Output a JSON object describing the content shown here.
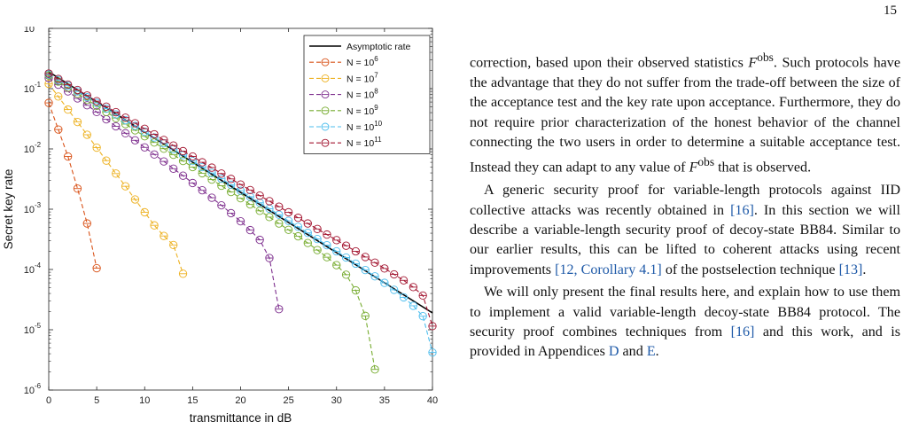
{
  "page_number": "15",
  "chart_data": {
    "type": "line",
    "xlabel": "transmittance in dB",
    "ylabel": "Secret key rate",
    "xlim": [
      0,
      40
    ],
    "ylim": [
      1e-06,
      1
    ],
    "yscale": "log",
    "xticks": [
      "0",
      "5",
      "10",
      "15",
      "20",
      "25",
      "30",
      "35",
      "40"
    ],
    "legend_position": "top-right",
    "series": [
      {
        "name": "Asymptotic rate",
        "exponent": "",
        "color": "#000000",
        "style": "solid",
        "x": [
          0,
          40
        ],
        "y": [
          0.19,
          1.9e-05
        ]
      },
      {
        "name": "N = 10",
        "exponent": "6",
        "color": "#d95319",
        "style": "dashed",
        "x": [
          0,
          1,
          2,
          3,
          4,
          5
        ],
        "y": [
          0.058,
          0.021,
          0.0075,
          0.0022,
          0.00058,
          0.000105
        ]
      },
      {
        "name": "N = 10",
        "exponent": "7",
        "color": "#edb120",
        "style": "dashed",
        "x": [
          0,
          1,
          2,
          3,
          4,
          5,
          6,
          7,
          8,
          9,
          10,
          11,
          12,
          13,
          14
        ],
        "y": [
          0.12,
          0.074,
          0.045,
          0.028,
          0.0172,
          0.0105,
          0.0064,
          0.0039,
          0.0024,
          0.00145,
          0.00089,
          0.00054,
          0.00036,
          0.000255,
          8.5e-05
        ]
      },
      {
        "name": "N = 10",
        "exponent": "8",
        "color": "#7e2f8e",
        "style": "dashed",
        "x": [
          0,
          1,
          2,
          3,
          4,
          5,
          6,
          7,
          8,
          9,
          10,
          11,
          12,
          13,
          14,
          15,
          16,
          17,
          18,
          19,
          20,
          21,
          22,
          23,
          24
        ],
        "y": [
          0.15,
          0.116,
          0.09,
          0.069,
          0.053,
          0.041,
          0.031,
          0.0237,
          0.0182,
          0.0139,
          0.0106,
          0.0081,
          0.0062,
          0.0047,
          0.0036,
          0.00272,
          0.00206,
          0.00155,
          0.00116,
          0.00086,
          0.00063,
          0.00045,
          0.00031,
          0.000155,
          2.2e-05
        ]
      },
      {
        "name": "N = 10",
        "exponent": "9",
        "color": "#77ac30",
        "style": "dashed",
        "x": [
          0,
          1,
          2,
          3,
          4,
          5,
          6,
          7,
          8,
          9,
          10,
          11,
          12,
          13,
          14,
          15,
          16,
          17,
          18,
          19,
          20,
          21,
          22,
          23,
          24,
          25,
          26,
          27,
          28,
          29,
          30,
          31,
          32,
          33,
          34
        ],
        "y": [
          0.165,
          0.131,
          0.104,
          0.082,
          0.065,
          0.052,
          0.041,
          0.0325,
          0.0258,
          0.0204,
          0.0162,
          0.0128,
          0.0101,
          0.008,
          0.0063,
          0.005,
          0.00395,
          0.0031,
          0.00245,
          0.00193,
          0.00152,
          0.0012,
          0.00094,
          0.00074,
          0.00058,
          0.000455,
          0.000355,
          0.000275,
          0.00021,
          0.00016,
          0.000118,
          8.2e-05,
          4.5e-05,
          1.7e-05,
          2.2e-06
        ]
      },
      {
        "name": "N = 10",
        "exponent": "10",
        "color": "#4dbeee",
        "style": "dashed",
        "x": [
          0,
          1,
          2,
          3,
          4,
          5,
          6,
          7,
          8,
          9,
          10,
          11,
          12,
          13,
          14,
          15,
          16,
          17,
          18,
          19,
          20,
          21,
          22,
          23,
          24,
          25,
          26,
          27,
          28,
          29,
          30,
          31,
          32,
          33,
          34,
          35,
          36,
          37,
          38,
          39,
          40
        ],
        "y": [
          0.172,
          0.139,
          0.112,
          0.09,
          0.072,
          0.058,
          0.0466,
          0.0374,
          0.03,
          0.0241,
          0.0193,
          0.0155,
          0.0124,
          0.0099,
          0.0079,
          0.0063,
          0.005,
          0.004,
          0.0032,
          0.00255,
          0.00203,
          0.00161,
          0.00128,
          0.00102,
          0.00081,
          0.00064,
          0.00051,
          0.000405,
          0.00032,
          0.000253,
          0.0002,
          0.000158,
          0.000125,
          9.8e-05,
          7.7e-05,
          6e-05,
          4.6e-05,
          3.45e-05,
          2.5e-05,
          1.68e-05,
          4.2e-06
        ]
      },
      {
        "name": "N = 10",
        "exponent": "11",
        "color": "#a2142f",
        "style": "dashed",
        "x": [
          0,
          1,
          2,
          3,
          4,
          5,
          6,
          7,
          8,
          9,
          10,
          11,
          12,
          13,
          14,
          15,
          16,
          17,
          18,
          19,
          20,
          21,
          22,
          23,
          24,
          25,
          26,
          27,
          28,
          29,
          30,
          31,
          32,
          33,
          34,
          35,
          36,
          37,
          38,
          39,
          40
        ],
        "y": [
          0.178,
          0.145,
          0.117,
          0.095,
          0.077,
          0.062,
          0.0503,
          0.0407,
          0.033,
          0.0267,
          0.0216,
          0.0175,
          0.0141,
          0.0114,
          0.0092,
          0.0075,
          0.006,
          0.0049,
          0.0039,
          0.00318,
          0.00257,
          0.00208,
          0.00168,
          0.00136,
          0.0011,
          0.00089,
          0.00072,
          0.00058,
          0.00047,
          0.00038,
          0.000307,
          0.000248,
          0.0002,
          0.000161,
          0.00013,
          0.000104,
          8.3e-05,
          6.6e-05,
          5.1e-05,
          3.7e-05,
          1.15e-05
        ]
      }
    ]
  },
  "text": {
    "p1_l1": "correction, based upon their observed statistics ",
    "p1_F": "F",
    "p1_sup": "obs",
    "p1_l1b": ".",
    "p1_rest": "Such protocols have the advantage that they do not suffer from the trade-off between the size of the acceptance test and the key rate upon acceptance. Furthermore, they do not require prior characterization of the honest behavior of the channel connecting the two users in order to determine a suitable acceptance test. Instead they can adapt to any value of ",
    "p1_F2": "F",
    "p1_sup2": "obs",
    "p1_end": " that is observed.",
    "p2_a": "A generic security proof for variable-length protocols against IID collective attacks was recently obtained in ",
    "p2_c1": "[16]",
    "p2_b": ". In this section we will describe a variable-length security proof of decoy-state BB84. Similar to our earlier results, this can be lifted to coherent attacks using recent improvements ",
    "p2_c2": "[12, Corollary 4.1]",
    "p2_c": " of the postselection technique ",
    "p2_c3": "[13]",
    "p2_d": ".",
    "p3_a": "We will only present the final results here, and explain how to use them to implement a valid variable-length decoy-state BB84 protocol. The security proof combines techniques from ",
    "p3_c1": "[16]",
    "p3_b": " and this work, and is provided in Appendices ",
    "p3_c2": "D",
    "p3_and": " and ",
    "p3_c3": "E",
    "p3_end": "."
  }
}
